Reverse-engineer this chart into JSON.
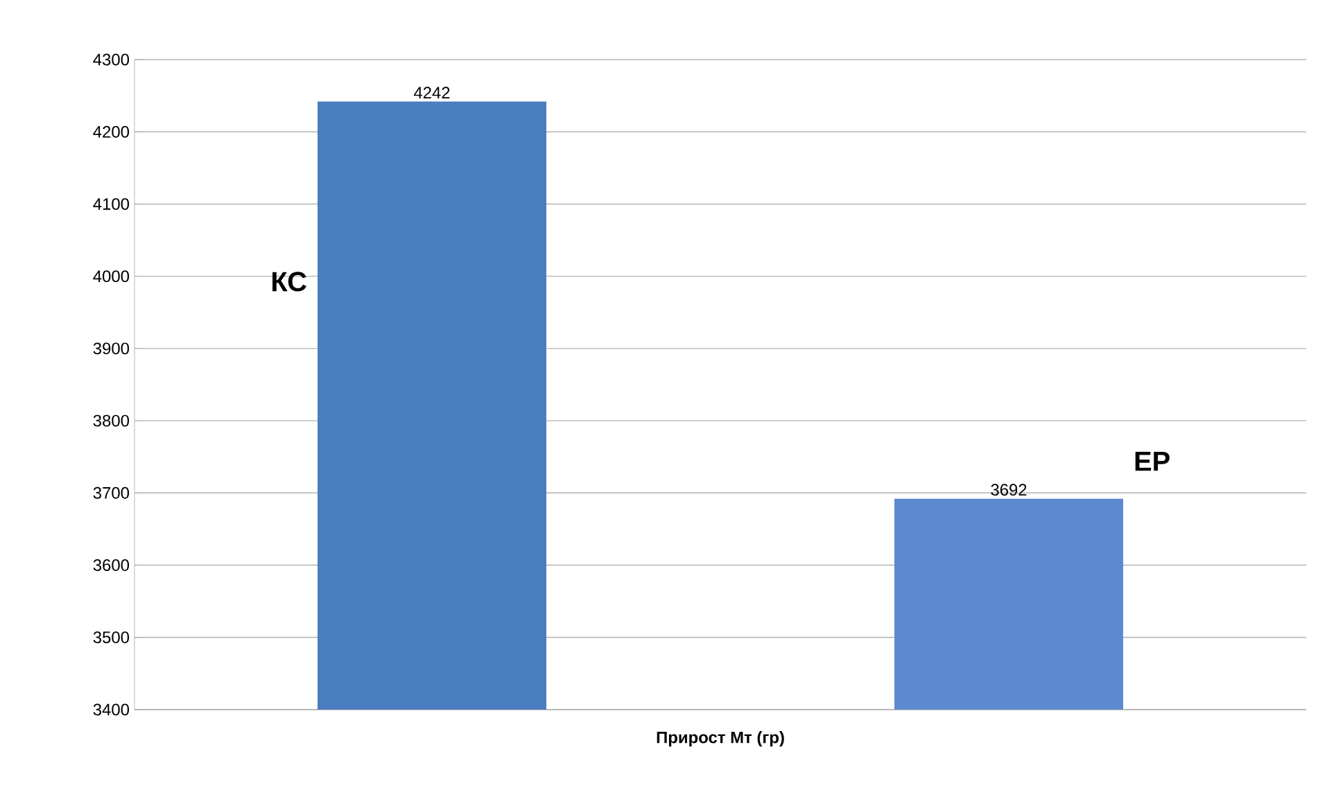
{
  "chart_data": {
    "type": "bar",
    "categories": [
      "**Прирост Мт (гр)**"
    ],
    "series": [
      {
        "name": "**КС**",
        "color": "#4a7dc0",
        "values": [
          4242
        ]
      },
      {
        "name": "**ЕР**",
        "color": "#5b8ad0",
        "values": [
          3692
        ]
      }
    ],
    "ylim": [
      3400,
      4300
    ],
    "yticks": [
      3400,
      3500,
      3600,
      3700,
      3800,
      3900,
      4000,
      4100,
      4200,
      4300
    ],
    "grid": "y",
    "data_labels": true
  }
}
